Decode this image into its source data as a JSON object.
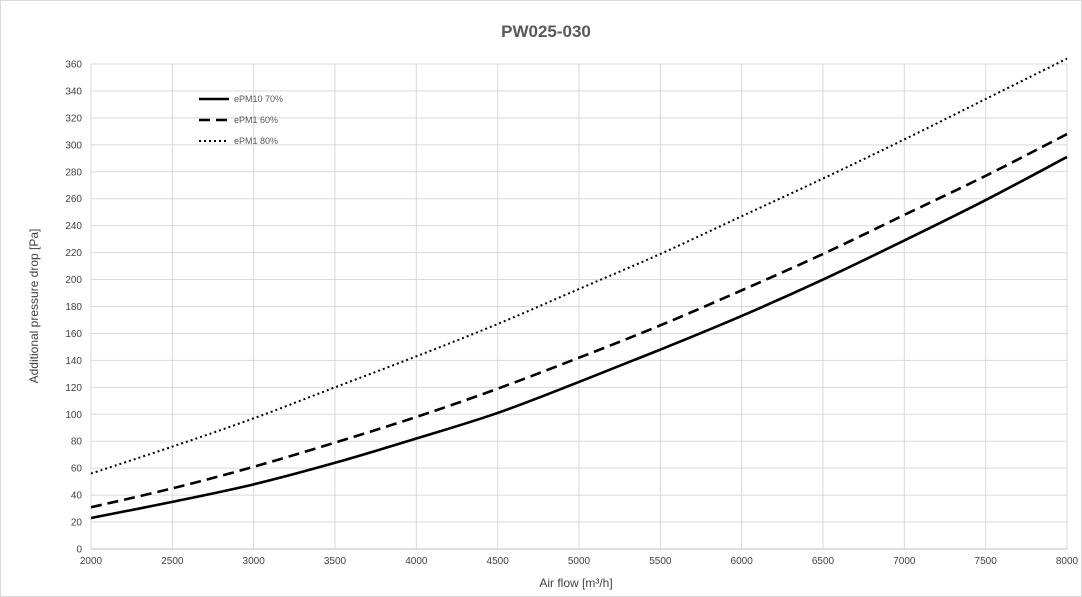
{
  "chart_data": {
    "type": "line",
    "title": "PW025-030",
    "xlabel": "Air flow [m³/h]",
    "ylabel": "Additional pressure drop [Pa]",
    "xlim": [
      2000,
      8000
    ],
    "ylim": [
      0,
      360
    ],
    "x_ticks": [
      2000,
      2500,
      3000,
      3500,
      4000,
      4500,
      5000,
      5500,
      6000,
      6500,
      7000,
      7500,
      8000
    ],
    "y_ticks": [
      0,
      20,
      40,
      60,
      80,
      100,
      120,
      140,
      160,
      180,
      200,
      220,
      240,
      260,
      280,
      300,
      320,
      340,
      360
    ],
    "grid": true,
    "legend_position": "top-left",
    "x": [
      2000,
      2500,
      3000,
      3500,
      4000,
      4500,
      5000,
      5500,
      6000,
      6500,
      7000,
      7500,
      8000
    ],
    "series": [
      {
        "name": "ePM10 70%",
        "style": "solid",
        "color": "#000000",
        "values": [
          23,
          35,
          48,
          64,
          82,
          101,
          124,
          148,
          173,
          200,
          229,
          259,
          291
        ]
      },
      {
        "name": "ePM1 60%",
        "style": "dashed",
        "color": "#000000",
        "values": [
          31,
          45,
          61,
          79,
          98,
          119,
          142,
          166,
          192,
          219,
          248,
          277,
          308
        ]
      },
      {
        "name": "ePM1 80%",
        "style": "dotted",
        "color": "#000000",
        "values": [
          56,
          76,
          97,
          120,
          143,
          167,
          193,
          219,
          247,
          275,
          304,
          334,
          364
        ]
      }
    ]
  }
}
